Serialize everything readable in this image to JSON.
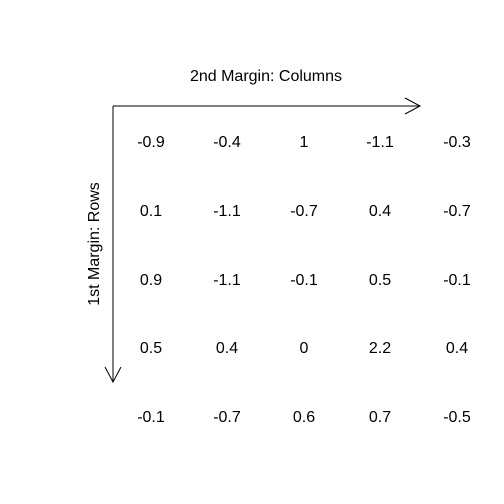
{
  "margins": {
    "columns_label": "2nd Margin: Columns",
    "rows_label": "1st Margin: Rows"
  },
  "matrix": [
    [
      "-0.9",
      "-0.4",
      "1",
      "-1.1",
      "-0.3"
    ],
    [
      "0.1",
      "-1.1",
      "-0.7",
      "0.4",
      "-0.7"
    ],
    [
      "0.9",
      "-1.1",
      "-0.1",
      "0.5",
      "-0.1"
    ],
    [
      "0.5",
      "0.4",
      "0",
      "2.2",
      "0.4"
    ],
    [
      "-0.1",
      "-0.7",
      "0.6",
      "0.7",
      "-0.5"
    ]
  ],
  "colors": {
    "background": "#ffffff",
    "ink": "#000000"
  }
}
